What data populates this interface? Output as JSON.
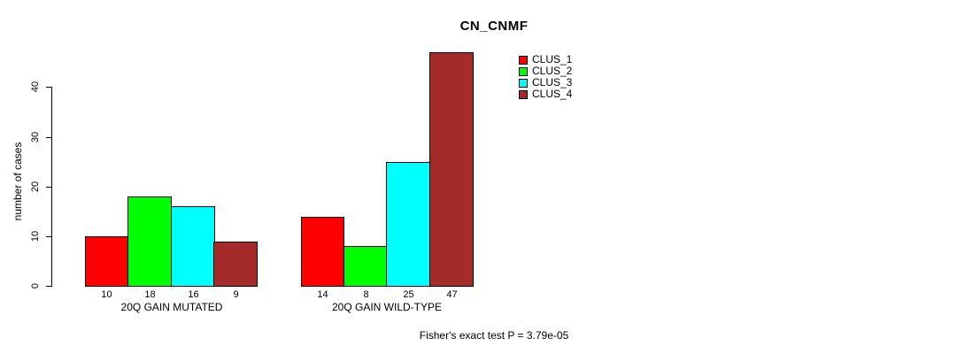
{
  "chart_data": {
    "type": "bar",
    "title": "CN_CNMF",
    "ylabel": "number of cases",
    "yticks": [
      0,
      10,
      20,
      30,
      40
    ],
    "ylim": [
      0,
      47
    ],
    "grid": false,
    "legend_position": "upper-right",
    "categories": [
      "20Q GAIN MUTATED",
      "20Q GAIN WILD-TYPE"
    ],
    "series": [
      {
        "name": "CLUS_1",
        "color": "#FF0000",
        "values": [
          10,
          14
        ]
      },
      {
        "name": "CLUS_2",
        "color": "#00FF00",
        "values": [
          18,
          8
        ]
      },
      {
        "name": "CLUS_3",
        "color": "#00FFFF",
        "values": [
          16,
          25
        ]
      },
      {
        "name": "CLUS_4",
        "color": "#A52A2A",
        "values": [
          9,
          47
        ]
      }
    ],
    "annotation": "Fisher's exact test P = 3.79e-05",
    "colors": {
      "axis": "#000000",
      "background": "#FFFFFF"
    }
  }
}
